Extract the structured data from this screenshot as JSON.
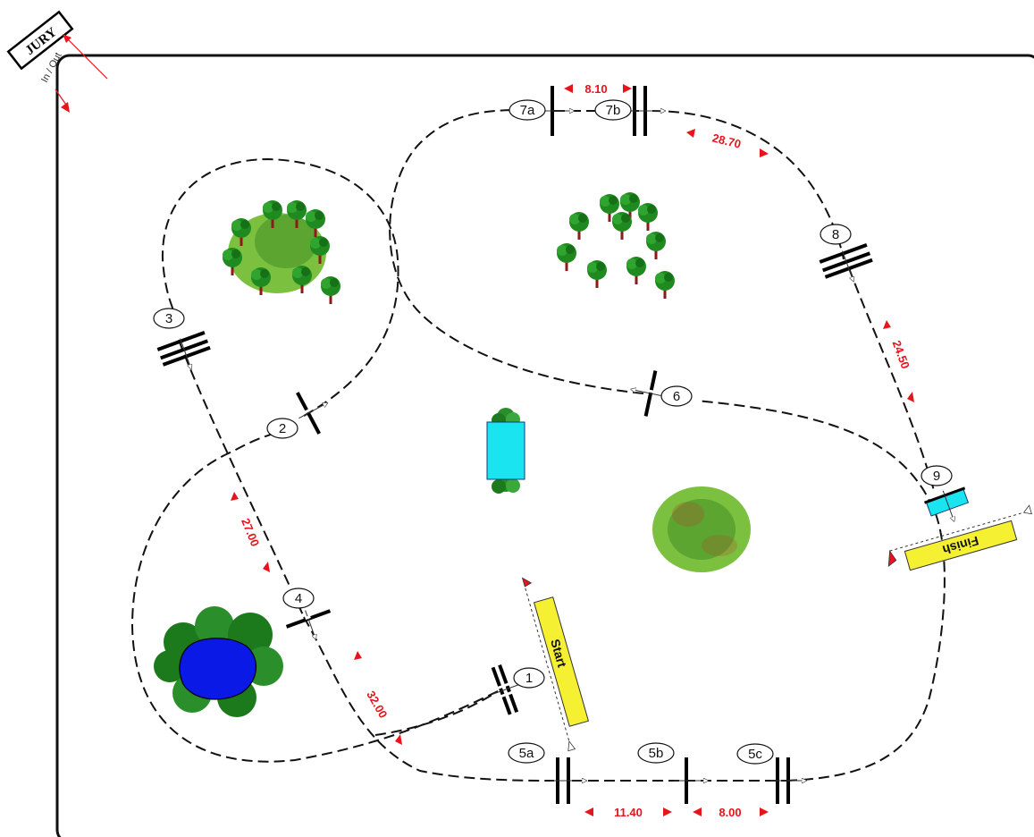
{
  "jury": {
    "label": "JURY",
    "gate_label": "In / Out"
  },
  "start_label": "Start",
  "finish_label": "Finish",
  "obstacles": [
    {
      "id": "1",
      "label": "1"
    },
    {
      "id": "2",
      "label": "2"
    },
    {
      "id": "3",
      "label": "3"
    },
    {
      "id": "4",
      "label": "4"
    },
    {
      "id": "5a",
      "label": "5a"
    },
    {
      "id": "5b",
      "label": "5b"
    },
    {
      "id": "5c",
      "label": "5c"
    },
    {
      "id": "6",
      "label": "6"
    },
    {
      "id": "7a",
      "label": "7a"
    },
    {
      "id": "7b",
      "label": "7b"
    },
    {
      "id": "8",
      "label": "8"
    },
    {
      "id": "9",
      "label": "9"
    }
  ],
  "distances": [
    {
      "id": "7a-7b",
      "label": "8.10"
    },
    {
      "id": "7b-8",
      "label": "28.70"
    },
    {
      "id": "8-9",
      "label": "24.50"
    },
    {
      "id": "3-4",
      "label": "27.00"
    },
    {
      "id": "4-5a",
      "label": "32.00"
    },
    {
      "id": "5a-5b",
      "label": "11.40"
    },
    {
      "id": "5b-5c",
      "label": "8.00"
    }
  ],
  "colors": {
    "track": "#111111",
    "distance": "#e8141b",
    "banner": "#f5f031",
    "water": "#19e4ef",
    "pond": "#0a19e6",
    "tree_dark": "#1a7a1a",
    "tree_light": "#7cc040"
  }
}
